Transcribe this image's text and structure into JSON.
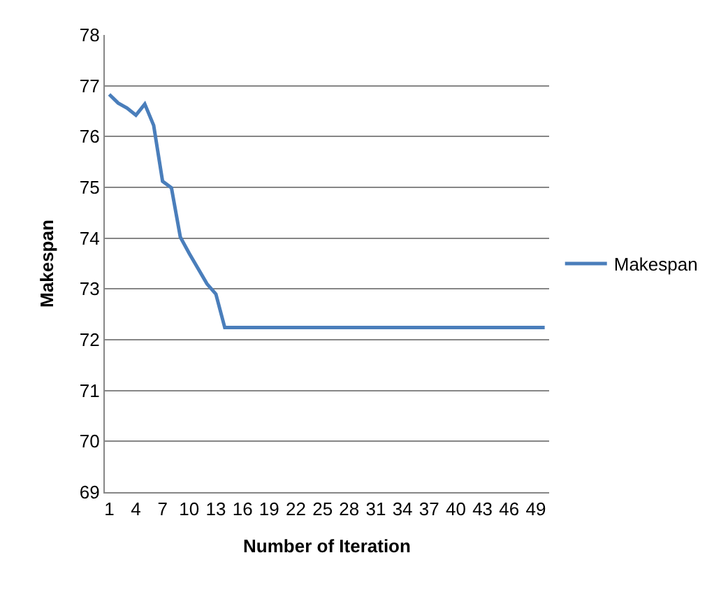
{
  "chart_data": {
    "type": "line",
    "xlabel": "Number of Iteration",
    "ylabel": "Makespan",
    "x": [
      1,
      2,
      3,
      4,
      5,
      6,
      7,
      8,
      9,
      10,
      11,
      12,
      13,
      14,
      15,
      16,
      17,
      18,
      19,
      20,
      21,
      22,
      23,
      24,
      25,
      26,
      27,
      28,
      29,
      30,
      31,
      32,
      33,
      34,
      35,
      36,
      37,
      38,
      39,
      40,
      41,
      42,
      43,
      44,
      45,
      46,
      47,
      48,
      49,
      50
    ],
    "series": [
      {
        "name": "Makespan",
        "color": "#4a7ebb",
        "values": [
          76.83,
          76.66,
          76.56,
          76.42,
          76.64,
          76.22,
          75.12,
          74.99,
          74.02,
          73.7,
          73.4,
          73.1,
          72.9,
          72.24,
          72.24,
          72.24,
          72.24,
          72.24,
          72.24,
          72.24,
          72.24,
          72.24,
          72.24,
          72.24,
          72.24,
          72.24,
          72.24,
          72.24,
          72.24,
          72.24,
          72.24,
          72.24,
          72.24,
          72.24,
          72.24,
          72.24,
          72.24,
          72.24,
          72.24,
          72.24,
          72.24,
          72.24,
          72.24,
          72.24,
          72.24,
          72.24,
          72.24,
          72.24,
          72.24,
          72.24
        ]
      }
    ],
    "xlim": [
      0.5,
      50.5
    ],
    "xticks": [
      1,
      4,
      7,
      10,
      13,
      16,
      19,
      22,
      25,
      28,
      31,
      34,
      37,
      40,
      43,
      46,
      49
    ],
    "ylim": [
      69,
      78
    ],
    "yticks": [
      69,
      70,
      71,
      72,
      73,
      74,
      75,
      76,
      77,
      78
    ],
    "grid": "y",
    "legend": "right",
    "marker": "none",
    "line_style": "solid"
  }
}
